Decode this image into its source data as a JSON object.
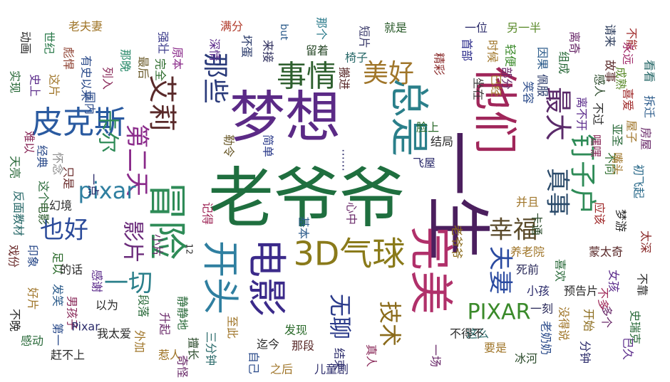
{
  "wordcloud": {
    "background": "#ffffff",
    "words": [
      {
        "text": "老爷爷",
        "color": "#1f6f3f"
      },
      {
        "text": "梦想",
        "color": "#5b2a86"
      },
      {
        "text": "一生",
        "color": "#4b1f5e"
      },
      {
        "text": "他们",
        "color": "#a0265a"
      },
      {
        "text": "完美",
        "color": "#b0306a"
      },
      {
        "text": "总是",
        "color": "#2a7f8a"
      },
      {
        "text": "冒险",
        "color": "#2e8b57"
      },
      {
        "text": "开头",
        "color": "#2f7fa0"
      },
      {
        "text": "电影",
        "color": "#3b2a8a"
      },
      {
        "text": "3D气球",
        "color": "#8a7a1a"
      },
      {
        "text": "皮克斯",
        "color": "#2a5aa0"
      },
      {
        "text": "艾莉",
        "color": "#5a2a2a"
      },
      {
        "text": "事情",
        "color": "#2e5f2e"
      },
      {
        "text": "美好",
        "color": "#a0762a"
      },
      {
        "text": "最大",
        "color": "#5a2a6a"
      },
      {
        "text": "钉子户",
        "color": "#2e8b57"
      },
      {
        "text": "那些",
        "color": "#2a3a7a"
      },
      {
        "text": "第二天",
        "color": "#8a2a8a"
      },
      {
        "text": "卡尔",
        "color": "#2e8b57"
      },
      {
        "text": "pixar",
        "color": "#2f7fa0"
      },
      {
        "text": "也好",
        "color": "#2a4a9a"
      },
      {
        "text": "影片",
        "color": "#6a2a7a"
      },
      {
        "text": "一切",
        "color": "#2a7f8a"
      },
      {
        "text": "幸福",
        "color": "#5a4a2a"
      },
      {
        "text": "夫妻",
        "color": "#2a4aa0"
      },
      {
        "text": "PIXAR",
        "color": "#3a8a2a"
      },
      {
        "text": "技术",
        "color": "#8a6a1a"
      },
      {
        "text": "无聊",
        "color": "#2a3a8a"
      },
      {
        "text": "真事",
        "color": "#2a4a6a"
      },
      {
        "text": "动画",
        "color": "#2a2a2a"
      },
      {
        "text": "世纪",
        "color": "#2a7a4a"
      },
      {
        "text": "彪悍",
        "color": "#8a3a2a"
      },
      {
        "text": "老夫妻",
        "color": "#a0762a"
      },
      {
        "text": "强壮",
        "color": "#3a3a8a"
      },
      {
        "text": "原本",
        "color": "#8a2a8a"
      },
      {
        "text": "满分",
        "color": "#b03a2a"
      },
      {
        "text": "but",
        "color": "#2a5a8a"
      },
      {
        "text": "那个",
        "color": "#2a7a8a"
      },
      {
        "text": "短片",
        "color": "#3a3a6a"
      },
      {
        "text": "就是",
        "color": "#2a5a2a"
      },
      {
        "text": "一位",
        "color": "#2a2a6a"
      },
      {
        "text": "另一半",
        "color": "#5a8a2a"
      },
      {
        "text": "离奇",
        "color": "#6a2a6a"
      },
      {
        "text": "请来",
        "color": "#2a3a5a"
      },
      {
        "text": "不能",
        "color": "#a02a2a"
      },
      {
        "text": "实现",
        "color": "#2a6a3a"
      },
      {
        "text": "史上",
        "color": "#5a2a8a"
      },
      {
        "text": "这片",
        "color": "#a0762a"
      },
      {
        "text": "有史以来",
        "color": "#2a4a8a"
      },
      {
        "text": "列入",
        "color": "#8a2a5a"
      },
      {
        "text": "那晚",
        "color": "#2a8a6a"
      },
      {
        "text": "最后",
        "color": "#6a5a2a"
      },
      {
        "text": "完全",
        "color": "#2a6a2a"
      },
      {
        "text": "深情",
        "color": "#5a2a8a"
      },
      {
        "text": "坏蛋",
        "color": "#2a3a6a"
      },
      {
        "text": "来接",
        "color": "#2a2a5a"
      },
      {
        "text": "留着",
        "color": "#2a4a2a"
      },
      {
        "text": "椅子",
        "color": "#2a6a6a"
      },
      {
        "text": "搬进",
        "color": "#5a2a2a"
      },
      {
        "text": "精彩",
        "color": "#8a2a2a"
      },
      {
        "text": "首部",
        "color": "#2a2a8a"
      },
      {
        "text": "时候",
        "color": "#a0762a"
      },
      {
        "text": "轻便",
        "color": "#3a8a2a"
      },
      {
        "text": "因果",
        "color": "#2a5a8a"
      },
      {
        "text": "组成",
        "color": "#2a6a3a"
      },
      {
        "text": "永远",
        "color": "#a02a6a"
      },
      {
        "text": "部分",
        "color": "#6a2a6a"
      },
      {
        "text": "已经",
        "color": "#a0762a"
      },
      {
        "text": "佩服",
        "color": "#2a3a6a"
      },
      {
        "text": "成熟",
        "color": "#5a8a2a"
      },
      {
        "text": "故事",
        "color": "#5a2a2a"
      },
      {
        "text": "看看",
        "color": "#2a6a6a"
      },
      {
        "text": "感人",
        "color": "#2a4a2a"
      },
      {
        "text": "坐在",
        "color": "#3a3a3a"
      },
      {
        "text": "笑容",
        "color": "#2a4a8a"
      },
      {
        "text": "喜爱",
        "color": "#a02a2a"
      },
      {
        "text": "拆迁",
        "color": "#2a5a8a"
      },
      {
        "text": "亚圣",
        "color": "#2a6a3a"
      },
      {
        "text": "房屋",
        "color": "#6a2a6a"
      },
      {
        "text": "国内",
        "color": "#2a4a8a"
      },
      {
        "text": "离不开",
        "color": "#5a2a8a"
      },
      {
        "text": "不过",
        "color": "#2a2a2a"
      },
      {
        "text": "屋子",
        "color": "#a0762a"
      },
      {
        "text": "嘿嘿",
        "color": "#8a2a5a"
      },
      {
        "text": "不同",
        "color": "#2a6a2a"
      },
      {
        "text": "勒令",
        "color": "#6a5a2a"
      },
      {
        "text": "简单",
        "color": "#2a3a8a"
      },
      {
        "text": "……",
        "color": "#2a2a6a"
      },
      {
        "text": "结局",
        "color": "#2a2a2a"
      },
      {
        "text": "脸上",
        "color": "#2a6a2a"
      },
      {
        "text": "飞屋",
        "color": "#2a2a6a"
      },
      {
        "text": "嘴头",
        "color": "#a0762a"
      },
      {
        "text": "初飞起",
        "color": "#2a6a8a"
      },
      {
        "text": "天亮",
        "color": "#2a6a3a"
      },
      {
        "text": "难以",
        "color": "#8a2a5a"
      },
      {
        "text": "经典",
        "color": "#2a4a8a"
      },
      {
        "text": "怀念",
        "color": "#8a8a8a"
      },
      {
        "text": "只是",
        "color": "#6a2a2a"
      },
      {
        "text": "这个",
        "color": "#2a6a3a"
      },
      {
        "text": "幻境",
        "color": "#2a2a2a"
      },
      {
        "text": "一点",
        "color": "#2a2a6a"
      },
      {
        "text": "记得",
        "color": "#a02a5a"
      },
      {
        "text": "基本",
        "color": "#2a5a8a"
      },
      {
        "text": "心中",
        "color": "#6a2a6a"
      },
      {
        "text": "并且",
        "color": "#a0762a"
      },
      {
        "text": "卡通",
        "color": "#2a4a2a"
      },
      {
        "text": "应该",
        "color": "#a02a2a"
      },
      {
        "text": "梦游",
        "color": "#2a2a2a"
      },
      {
        "text": "太深",
        "color": "#8a2a2a"
      },
      {
        "text": "反面教材",
        "color": "#2a6a6a"
      },
      {
        "text": "电影",
        "color": "#2a5a2a"
      },
      {
        "text": "12",
        "color": "#2a2a2a"
      },
      {
        "text": "小片",
        "color": "#6a2a6a"
      },
      {
        "text": "蒙太奇",
        "color": "#5a2a2a"
      },
      {
        "text": "养老院",
        "color": "#a0762a"
      },
      {
        "text": "死前",
        "color": "#2a2a5a"
      },
      {
        "text": "喜欢",
        "color": "#2a6a3a"
      },
      {
        "text": "女孩",
        "color": "#5a2a8a"
      },
      {
        "text": "不靠",
        "color": "#2a2a2a"
      },
      {
        "text": "戏份",
        "color": "#6a2a2a"
      },
      {
        "text": "印象",
        "color": "#2a4a8a"
      },
      {
        "text": "足以",
        "color": "#2a6a2a"
      },
      {
        "text": "的话",
        "color": "#2a2a2a"
      },
      {
        "text": "感谢",
        "color": "#5a2a8a"
      },
      {
        "text": "段落",
        "color": "#2a6a3a"
      },
      {
        "text": "小孩",
        "color": "#2a2a6a"
      },
      {
        "text": "预告片",
        "color": "#2a2a2a"
      },
      {
        "text": "一刻",
        "color": "#2a2a5a"
      },
      {
        "text": "这么",
        "color": "#2a6a6a"
      },
      {
        "text": "没得说",
        "color": "#a0762a"
      },
      {
        "text": "老奶奶",
        "color": "#2a4a8a"
      },
      {
        "text": "开始",
        "color": "#8a6a1a"
      },
      {
        "text": "多个",
        "color": "#6a2a6a"
      },
      {
        "text": "不多",
        "color": "#a02a5a"
      },
      {
        "text": "史瑞克",
        "color": "#2a6a3a"
      },
      {
        "text": "好片",
        "color": "#a0762a"
      },
      {
        "text": "发笑",
        "color": "#2a5a8a"
      },
      {
        "text": "男孩子",
        "color": "#8a2a5a"
      },
      {
        "text": "以为",
        "color": "#2a2a2a"
      },
      {
        "text": "静静地",
        "color": "#2a6a3a"
      },
      {
        "text": "升起",
        "color": "#6a2a6a"
      },
      {
        "text": "擅长",
        "color": "#2a4a2a"
      },
      {
        "text": "至此",
        "color": "#a0762a"
      },
      {
        "text": "自己",
        "color": "#2a4a8a"
      },
      {
        "text": "迄今",
        "color": "#2a2a2a"
      },
      {
        "text": "发现",
        "color": "#2a6a2a"
      },
      {
        "text": "那段",
        "color": "#5a2a2a"
      },
      {
        "text": "结束",
        "color": "#2a2a6a"
      },
      {
        "text": "真人",
        "color": "#8a2a5a"
      },
      {
        "text": "要是",
        "color": "#a0762a"
      },
      {
        "text": "冰河",
        "color": "#2a4a2a"
      },
      {
        "text": "不得不",
        "color": "#2a2a2a"
      },
      {
        "text": "一场",
        "color": "#6a2a6a"
      },
      {
        "text": "分钟",
        "color": "#2a2a6a"
      },
      {
        "text": "已久",
        "color": "#5a2a8a"
      },
      {
        "text": "不晚",
        "color": "#2a2a2a"
      },
      {
        "text": "感动",
        "color": "#2a6a3a"
      },
      {
        "text": "第一",
        "color": "#2a4a8a"
      },
      {
        "text": "Pixar",
        "color": "#2a2a6a"
      },
      {
        "text": "我太爱",
        "color": "#2a2a2a"
      },
      {
        "text": "外加",
        "color": "#a0762a"
      },
      {
        "text": "三分钟",
        "color": "#2a6a6a"
      },
      {
        "text": "奇怪",
        "color": "#6a2a6a"
      },
      {
        "text": "赶不上",
        "color": "#2a2a2a"
      },
      {
        "text": "惹人",
        "color": "#a0762a"
      },
      {
        "text": "之后",
        "color": "#a0762a"
      },
      {
        "text": "儿童剧",
        "color": "#2a2a6a"
      },
      {
        "text": "老爷爷",
        "color": "#8a6a1a"
      }
    ]
  }
}
